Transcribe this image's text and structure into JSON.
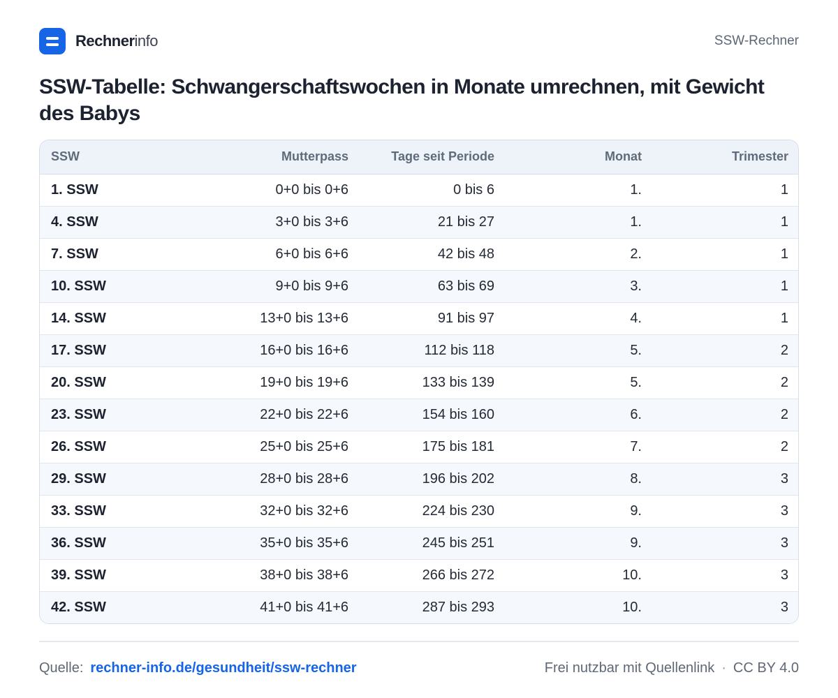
{
  "header": {
    "brand_strong": "Rechner",
    "brand_light": "info",
    "right_label": "SSW-Rechner"
  },
  "title": "SSW-Tabelle: Schwangerschaftswochen in Monate umrechnen, mit Gewicht des Babys",
  "table": {
    "columns": [
      "SSW",
      "Mutterpass",
      "Tage seit Periode",
      "Monat",
      "Trimester"
    ],
    "rows": [
      [
        "1. SSW",
        "0+0 bis 0+6",
        "0 bis 6",
        "1.",
        "1"
      ],
      [
        "4. SSW",
        "3+0 bis 3+6",
        "21 bis 27",
        "1.",
        "1"
      ],
      [
        "7. SSW",
        "6+0 bis 6+6",
        "42 bis 48",
        "2.",
        "1"
      ],
      [
        "10. SSW",
        "9+0 bis 9+6",
        "63 bis 69",
        "3.",
        "1"
      ],
      [
        "14. SSW",
        "13+0 bis 13+6",
        "91 bis 97",
        "4.",
        "1"
      ],
      [
        "17. SSW",
        "16+0 bis 16+6",
        "112 bis 118",
        "5.",
        "2"
      ],
      [
        "20. SSW",
        "19+0 bis 19+6",
        "133 bis 139",
        "5.",
        "2"
      ],
      [
        "23. SSW",
        "22+0 bis 22+6",
        "154 bis 160",
        "6.",
        "2"
      ],
      [
        "26. SSW",
        "25+0 bis 25+6",
        "175 bis 181",
        "7.",
        "2"
      ],
      [
        "29. SSW",
        "28+0 bis 28+6",
        "196 bis 202",
        "8.",
        "3"
      ],
      [
        "33. SSW",
        "32+0 bis 32+6",
        "224 bis 230",
        "9.",
        "3"
      ],
      [
        "36. SSW",
        "35+0 bis 35+6",
        "245 bis 251",
        "9.",
        "3"
      ],
      [
        "39. SSW",
        "38+0 bis 38+6",
        "266 bis 272",
        "10.",
        "3"
      ],
      [
        "42. SSW",
        "41+0 bis 41+6",
        "287 bis 293",
        "10.",
        "3"
      ]
    ]
  },
  "footer": {
    "source_label": "Quelle:",
    "source_link": "rechner-info.de/gesundheit/ssw-rechner",
    "license_text": "Frei nutzbar mit Quellenlink",
    "separator": "·",
    "license": "CC BY 4.0"
  },
  "colors": {
    "accent": "#1565e6",
    "header_bg": "#eef3f9",
    "row_alt": "#f5f8fc"
  },
  "icons": {
    "logo": "equals-logo-icon"
  }
}
